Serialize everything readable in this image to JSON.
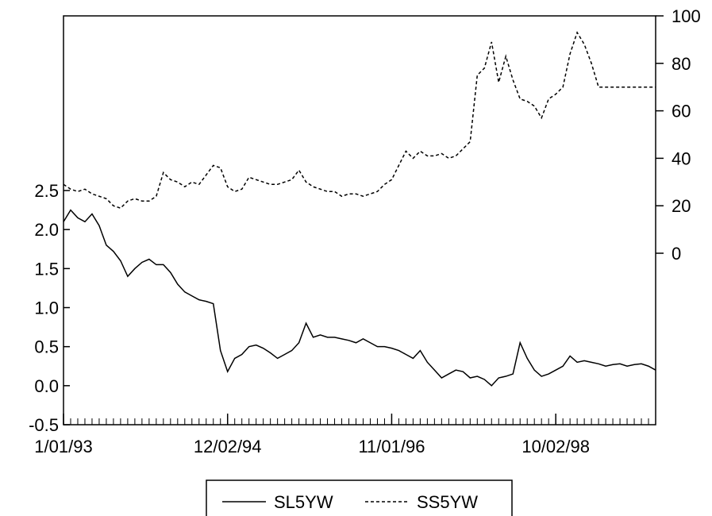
{
  "chart_data": {
    "type": "line",
    "title": "",
    "xlabel": "",
    "x_tick_labels": [
      "1/01/93",
      "12/02/94",
      "11/01/96",
      "10/02/98"
    ],
    "y_left": {
      "label": "",
      "ylim": [
        -0.5,
        2.5
      ],
      "ticks": [
        "-0.5",
        "0.0",
        "0.5",
        "1.0",
        "1.5",
        "2.0",
        "2.5"
      ]
    },
    "y_right": {
      "label": "",
      "ylim": [
        0,
        100
      ],
      "ticks": [
        "0",
        "20",
        "40",
        "60",
        "80",
        "100"
      ]
    },
    "grid": false,
    "legend_position": "bottom-center",
    "series": [
      {
        "name": "SL5YW",
        "axis": "left",
        "line_style": "solid",
        "color": "#000000",
        "x": [
          "1/01/93",
          "2/01/93",
          "3/01/93",
          "4/01/93",
          "5/01/93",
          "6/01/93",
          "7/01/93",
          "8/01/93",
          "9/01/93",
          "10/01/93",
          "11/01/93",
          "12/01/93",
          "1/01/94",
          "2/01/94",
          "3/01/94",
          "4/01/94",
          "5/01/94",
          "6/01/94",
          "7/01/94",
          "8/01/94",
          "9/01/94",
          "10/01/94",
          "11/01/94",
          "12/01/94",
          "1/01/95",
          "2/01/95",
          "3/01/95",
          "4/01/95",
          "5/01/95",
          "6/01/95",
          "7/01/95",
          "8/01/95",
          "9/01/95",
          "10/01/95",
          "11/01/95",
          "12/01/95",
          "1/01/96",
          "2/01/96",
          "3/01/96",
          "4/01/96",
          "5/01/96",
          "6/01/96",
          "7/01/96",
          "8/01/96",
          "9/01/96",
          "10/01/96",
          "11/01/96",
          "12/01/96",
          "1/01/97",
          "2/01/97",
          "3/01/97",
          "4/01/97",
          "5/01/97",
          "6/01/97",
          "7/01/97",
          "8/01/97",
          "9/01/97",
          "10/01/97",
          "11/01/97",
          "12/01/97",
          "1/01/98",
          "2/01/98",
          "3/01/98",
          "4/01/98",
          "5/01/98",
          "6/01/98",
          "7/01/98",
          "8/01/98",
          "9/01/98",
          "10/01/98",
          "11/01/98",
          "12/01/98",
          "1/01/99",
          "2/01/99",
          "3/01/99",
          "4/01/99",
          "5/01/99",
          "6/01/99",
          "7/01/99",
          "8/01/99",
          "9/01/99",
          "10/01/99",
          "11/01/99",
          "12/01/99"
        ],
        "values": [
          2.1,
          2.25,
          2.15,
          2.1,
          2.2,
          2.05,
          1.8,
          1.72,
          1.6,
          1.4,
          1.5,
          1.58,
          1.62,
          1.55,
          1.55,
          1.45,
          1.3,
          1.2,
          1.15,
          1.1,
          1.08,
          1.05,
          0.45,
          0.18,
          0.35,
          0.4,
          0.5,
          0.52,
          0.48,
          0.42,
          0.35,
          0.4,
          0.45,
          0.55,
          0.8,
          0.62,
          0.65,
          0.62,
          0.62,
          0.6,
          0.58,
          0.55,
          0.6,
          0.55,
          0.5,
          0.5,
          0.48,
          0.45,
          0.4,
          0.35,
          0.45,
          0.3,
          0.2,
          0.1,
          0.15,
          0.2,
          0.18,
          0.1,
          0.12,
          0.08,
          0.0,
          0.1,
          0.12,
          0.15,
          0.55,
          0.35,
          0.2,
          0.12,
          0.15,
          0.2,
          0.25,
          0.38,
          0.3,
          0.32,
          0.3,
          0.28,
          0.25,
          0.27,
          0.28,
          0.25,
          0.27,
          0.28,
          0.25,
          0.2
        ]
      },
      {
        "name": "SS5YW",
        "axis": "right",
        "line_style": "dashed",
        "color": "#000000",
        "x": [
          "1/01/93",
          "2/01/93",
          "3/01/93",
          "4/01/93",
          "5/01/93",
          "6/01/93",
          "7/01/93",
          "8/01/93",
          "9/01/93",
          "10/01/93",
          "11/01/93",
          "12/01/93",
          "1/01/94",
          "2/01/94",
          "3/01/94",
          "4/01/94",
          "5/01/94",
          "6/01/94",
          "7/01/94",
          "8/01/94",
          "9/01/94",
          "10/01/94",
          "11/01/94",
          "12/01/94",
          "1/01/95",
          "2/01/95",
          "3/01/95",
          "4/01/95",
          "5/01/95",
          "6/01/95",
          "7/01/95",
          "8/01/95",
          "9/01/95",
          "10/01/95",
          "11/01/95",
          "12/01/95",
          "1/01/96",
          "2/01/96",
          "3/01/96",
          "4/01/96",
          "5/01/96",
          "6/01/96",
          "7/01/96",
          "8/01/96",
          "9/01/96",
          "10/01/96",
          "11/01/96",
          "12/01/96",
          "1/01/97",
          "2/01/97",
          "3/01/97",
          "4/01/97",
          "5/01/97",
          "6/01/97",
          "7/01/97",
          "8/01/97",
          "9/01/97",
          "10/01/97",
          "11/01/97",
          "12/01/97",
          "1/01/98",
          "2/01/98",
          "3/01/98",
          "4/01/98",
          "5/01/98",
          "6/01/98",
          "7/01/98",
          "8/01/98",
          "9/01/98",
          "10/01/98",
          "11/01/98",
          "12/01/98",
          "1/01/99",
          "2/01/99",
          "3/01/99",
          "4/01/99",
          "5/01/99",
          "6/01/99",
          "7/01/99",
          "8/01/99",
          "9/01/99",
          "10/01/99",
          "11/01/99",
          "12/01/99"
        ],
        "values": [
          29,
          27,
          26,
          27,
          25,
          24,
          23,
          20,
          19,
          22,
          23,
          22,
          22,
          24,
          34,
          31,
          30,
          28,
          30,
          29,
          33,
          37,
          36,
          28,
          26,
          27,
          32,
          31,
          30,
          29,
          29,
          30,
          31,
          35,
          30,
          28,
          27,
          26,
          26,
          24,
          25,
          25,
          24,
          25,
          26,
          29,
          31,
          37,
          43,
          40,
          43,
          41,
          41,
          42,
          40,
          41,
          44,
          47,
          75,
          78,
          89,
          72,
          83,
          73,
          65,
          64,
          62,
          57,
          65,
          67,
          70,
          84,
          93,
          88,
          80,
          70,
          70,
          70,
          70,
          70,
          70,
          70,
          70,
          70
        ]
      }
    ]
  },
  "legend": {
    "items": [
      {
        "label": "SL5YW",
        "line_style": "solid"
      },
      {
        "label": "SS5YW",
        "line_style": "dashed"
      }
    ]
  }
}
